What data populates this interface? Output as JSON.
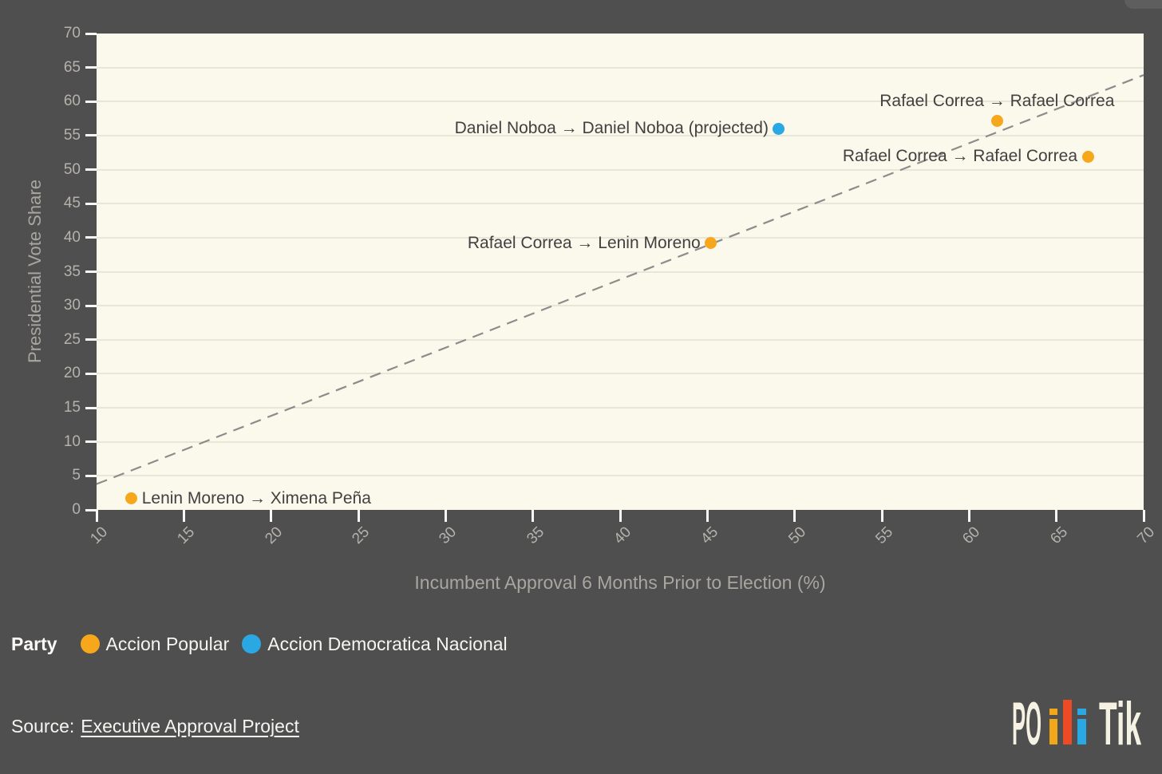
{
  "page": {
    "background": "#4F4F4F",
    "notch_color": "#5E5E5E"
  },
  "chart_data": {
    "type": "scatter",
    "xlabel": "Incumbent Approval 6 Months Prior to Election (%)",
    "ylabel": "Presidential Vote Share",
    "xlim": [
      10,
      70
    ],
    "ylim": [
      0,
      70
    ],
    "x_ticks": [
      10,
      15,
      20,
      25,
      30,
      35,
      40,
      45,
      50,
      55,
      60,
      65,
      70
    ],
    "y_ticks": [
      0,
      5,
      10,
      15,
      20,
      25,
      30,
      35,
      40,
      45,
      50,
      55,
      60,
      65,
      70
    ],
    "grid": "horizontal-only",
    "plot_bg": "#FBF8EC",
    "grid_color": "#E8E5D9",
    "trend_line": {
      "style": "dashed",
      "color": "#8C8C8C",
      "x1": 10,
      "y1": 3.8,
      "x2": 70,
      "y2": 63.9
    },
    "points": [
      {
        "label": "Lenin Moreno → Ximena Peña",
        "x": 12,
        "y": 1.7,
        "party": "Accion Popular",
        "color": "#F6A71C",
        "label_position": "right"
      },
      {
        "label": "Rafael Correa → Lenin Moreno",
        "x": 45.2,
        "y": 39.2,
        "party": "Accion Popular",
        "color": "#F6A71C",
        "label_position": "left"
      },
      {
        "label": "Daniel Noboa → Daniel Noboa (projected)",
        "x": 49.1,
        "y": 56,
        "party": "Accion Democratica Nacional",
        "color": "#29A8E4",
        "label_position": "left"
      },
      {
        "label": "Rafael Correa → Rafael Correa",
        "x": 61.6,
        "y": 57.2,
        "party": "Accion Popular",
        "color": "#F6A71C",
        "label_position": "above"
      },
      {
        "label": "Rafael Correa → Rafael Correa",
        "x": 66.8,
        "y": 51.9,
        "party": "Accion Popular",
        "color": "#F6A71C",
        "label_position": "left"
      }
    ]
  },
  "legend": {
    "title": "Party",
    "items": [
      {
        "label": "Accion Popular",
        "color": "#F6A71C"
      },
      {
        "label": "Accion Democratica Nacional",
        "color": "#29A8E4"
      }
    ]
  },
  "source": {
    "prefix": "Source:",
    "link_text": "Executive Approval Project"
  },
  "logo": {
    "text_left": "PO",
    "text_right": "Tik",
    "text_color": "#F5F1E3",
    "bar_colors": [
      "#F2A71B",
      "#EC4B26",
      "#29A8E4"
    ]
  }
}
